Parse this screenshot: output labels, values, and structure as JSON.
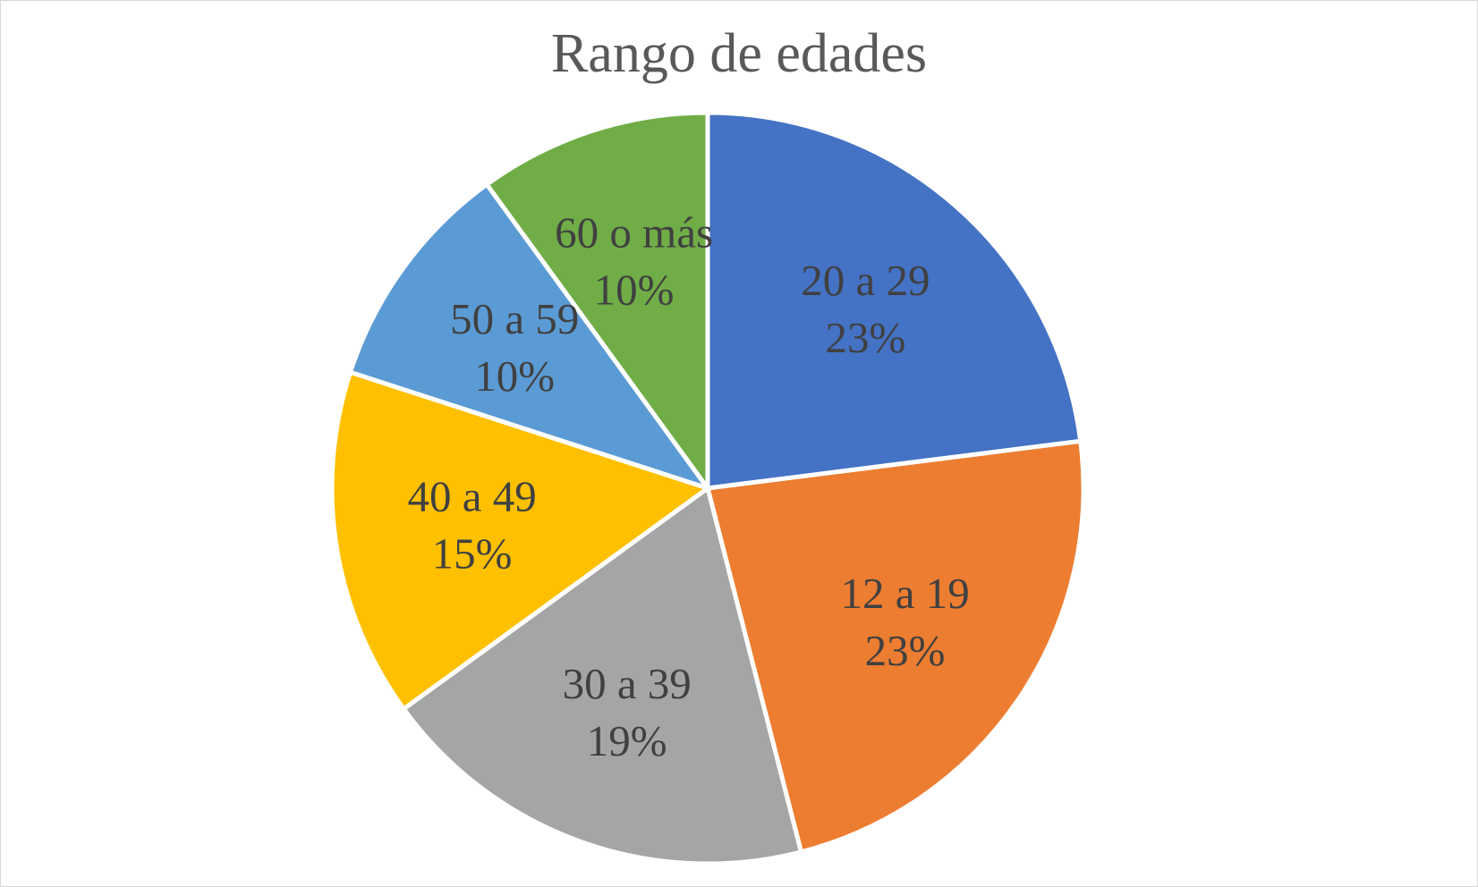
{
  "chart_data": {
    "type": "pie",
    "title": "Rango de edades",
    "slices": [
      {
        "label": "20 a 29",
        "value": 23,
        "percent_label": "23%",
        "color": "#4472C4"
      },
      {
        "label": "12 a 19",
        "value": 23,
        "percent_label": "23%",
        "color": "#ED7D31"
      },
      {
        "label": "30 a 39",
        "value": 19,
        "percent_label": "19%",
        "color": "#A5A5A5"
      },
      {
        "label": "40 a 49",
        "value": 15,
        "percent_label": "15%",
        "color": "#FFC000"
      },
      {
        "label": "50 a 59",
        "value": 10,
        "percent_label": "10%",
        "color": "#5B9BD5"
      },
      {
        "label": "60 o más",
        "value": 10,
        "percent_label": "10%",
        "color": "#70AD47"
      }
    ],
    "legend": "none"
  }
}
